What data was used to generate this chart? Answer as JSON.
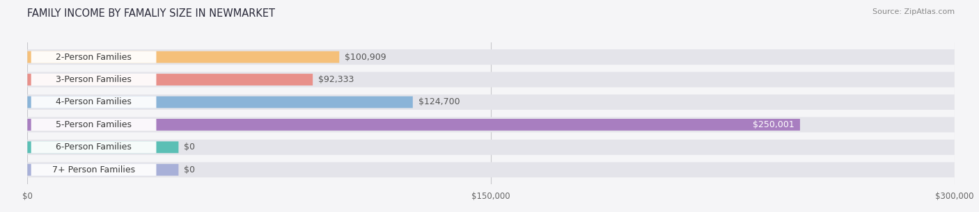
{
  "title": "FAMILY INCOME BY FAMALIY SIZE IN NEWMARKET",
  "source": "Source: ZipAtlas.com",
  "categories": [
    "2-Person Families",
    "3-Person Families",
    "4-Person Families",
    "5-Person Families",
    "6-Person Families",
    "7+ Person Families"
  ],
  "values": [
    100909,
    92333,
    124700,
    250001,
    0,
    0
  ],
  "bar_colors": [
    "#f5c07a",
    "#e8908a",
    "#8ab4d8",
    "#a87ec0",
    "#5bbfb5",
    "#a8b0d8"
  ],
  "bar_bg_color": "#e4e4ea",
  "xmax": 300000,
  "xtick_labels": [
    "$0",
    "$150,000",
    "$300,000"
  ],
  "value_labels": [
    "$100,909",
    "$92,333",
    "$124,700",
    "$250,001",
    "$0",
    "$0"
  ],
  "background_color": "#f5f5f7",
  "title_fontsize": 10.5,
  "label_fontsize": 9,
  "value_fontsize": 9,
  "source_fontsize": 8
}
